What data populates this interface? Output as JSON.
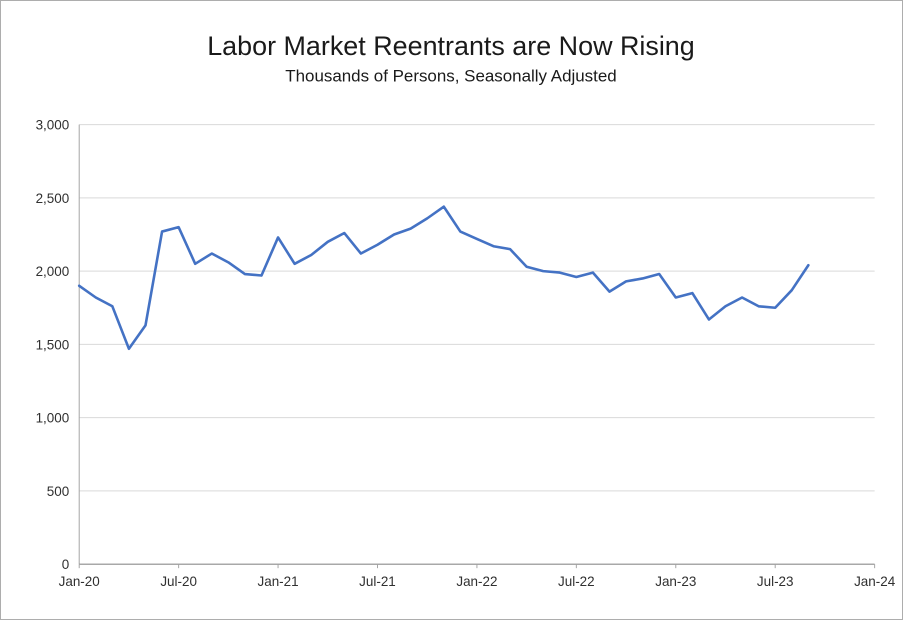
{
  "window": {
    "background": "#ffffff",
    "border_color": "#adadad"
  },
  "chart_data": {
    "type": "line",
    "title": "Labor Market Reentrants are Now Rising",
    "subtitle": "Thousands of Persons, Seasonally Adjusted",
    "x": [
      "Jan-20",
      "Feb-20",
      "Mar-20",
      "Apr-20",
      "May-20",
      "Jun-20",
      "Jul-20",
      "Aug-20",
      "Sep-20",
      "Oct-20",
      "Nov-20",
      "Dec-20",
      "Jan-21",
      "Feb-21",
      "Mar-21",
      "Apr-21",
      "May-21",
      "Jun-21",
      "Jul-21",
      "Aug-21",
      "Sep-21",
      "Oct-21",
      "Nov-21",
      "Dec-21",
      "Jan-22",
      "Feb-22",
      "Mar-22",
      "Apr-22",
      "May-22",
      "Jun-22",
      "Jul-22",
      "Aug-22",
      "Sep-22",
      "Oct-22",
      "Nov-22",
      "Dec-22",
      "Jan-23",
      "Feb-23",
      "Mar-23",
      "Apr-23",
      "May-23",
      "Jun-23",
      "Jul-23",
      "Aug-23",
      "Sep-23"
    ],
    "series": [
      {
        "name": "Labor Market Reentrants",
        "color": "#4472c4",
        "values": [
          1900,
          1820,
          1760,
          1470,
          1630,
          2270,
          2300,
          2050,
          2120,
          2060,
          1980,
          1970,
          2230,
          2050,
          2110,
          2200,
          2260,
          2120,
          2180,
          2250,
          2290,
          2360,
          2440,
          2270,
          2220,
          2170,
          2150,
          2030,
          2000,
          1990,
          1960,
          1990,
          1860,
          1930,
          1950,
          1980,
          1820,
          1850,
          1670,
          1760,
          1820,
          1760,
          1750,
          1870,
          2040
        ]
      }
    ],
    "ylim": [
      0,
      3000
    ],
    "ytick_step": 500,
    "ytick_labels": [
      "0",
      "500",
      "1,000",
      "1,500",
      "2,000",
      "2,500",
      "3,000"
    ],
    "xtick_labels": [
      "Jan-20",
      "Jul-20",
      "Jan-21",
      "Jul-21",
      "Jan-22",
      "Jul-22",
      "Jan-23",
      "Jul-23",
      "Jan-24"
    ],
    "x_total_months": 48,
    "xtick_interval_months": 6,
    "grid": "horizontal",
    "grid_color": "#d9d9d9",
    "axis_color": "#a6a6a6",
    "legend": "none"
  }
}
